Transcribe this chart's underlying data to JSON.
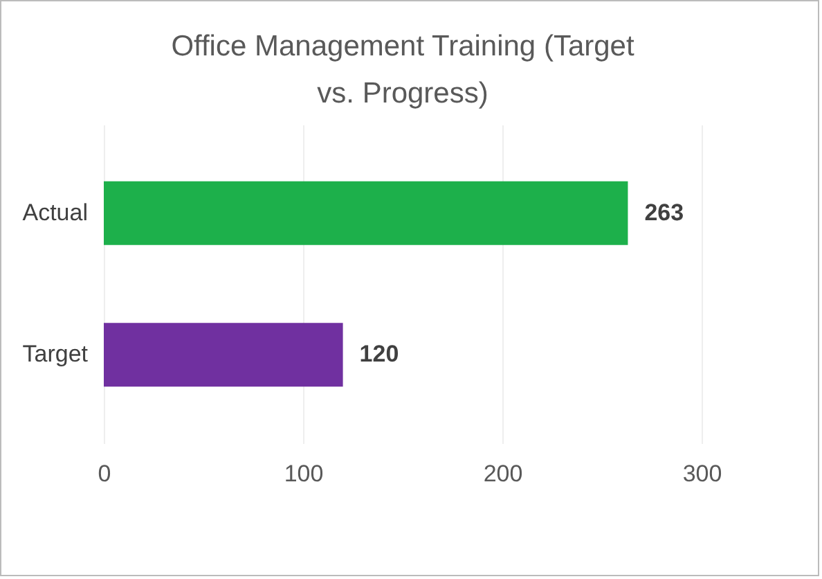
{
  "chart_data": {
    "type": "bar",
    "orientation": "horizontal",
    "title": "Office Management Training (Target vs. Progress)",
    "categories": [
      "Actual",
      "Target"
    ],
    "values": [
      263,
      120
    ],
    "colors": [
      "#1db04b",
      "#7030a0"
    ],
    "xlim": [
      0,
      300
    ],
    "xticks": [
      0,
      100,
      200,
      300
    ],
    "grid": "x",
    "data_labels": true
  }
}
